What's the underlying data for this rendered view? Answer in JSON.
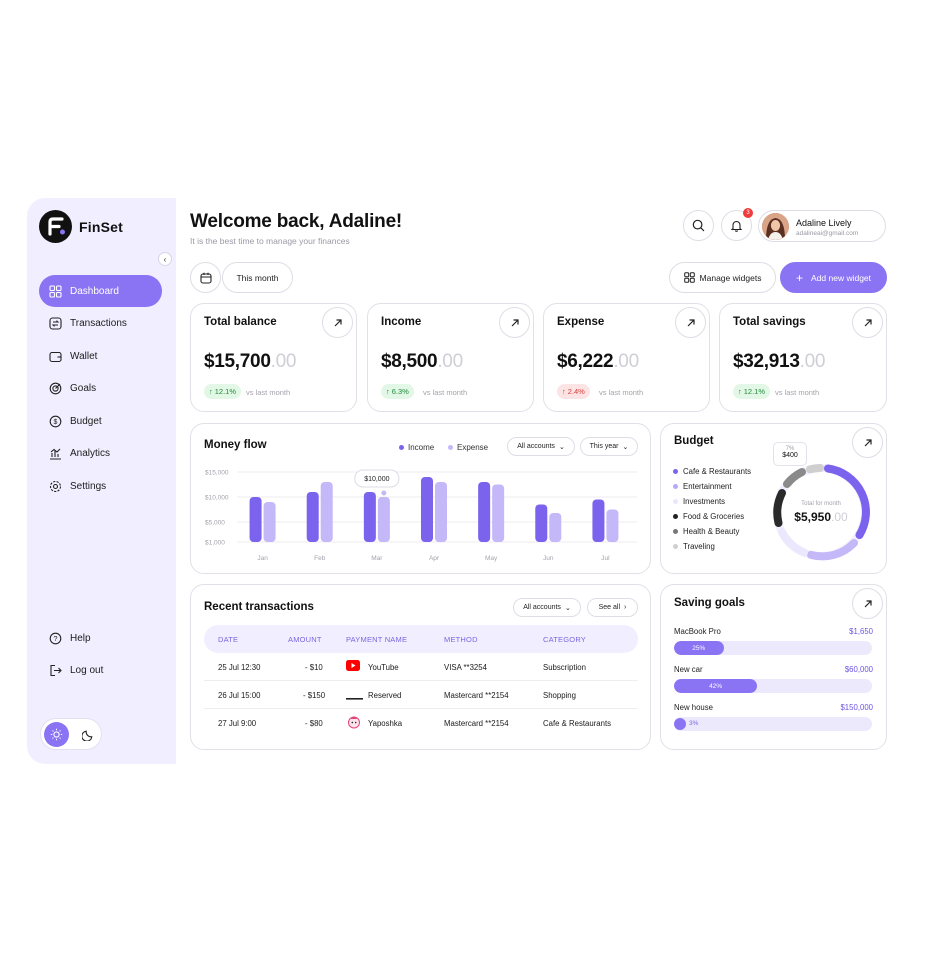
{
  "app": {
    "name": "FinSet"
  },
  "sidebar": {
    "items": [
      {
        "label": "Dashboard",
        "icon": "dashboard-icon",
        "active": true
      },
      {
        "label": "Transactions",
        "icon": "transactions-icon"
      },
      {
        "label": "Wallet",
        "icon": "wallet-icon"
      },
      {
        "label": "Goals",
        "icon": "goals-icon"
      },
      {
        "label": "Budget",
        "icon": "budget-icon"
      },
      {
        "label": "Analytics",
        "icon": "analytics-icon"
      },
      {
        "label": "Settings",
        "icon": "settings-icon"
      }
    ],
    "bottom": [
      {
        "label": "Help",
        "icon": "help-icon"
      },
      {
        "label": "Log out",
        "icon": "logout-icon"
      }
    ],
    "theme": {
      "active": "light"
    }
  },
  "header": {
    "title": "Welcome back, Adaline!",
    "subtitle": "It is the best time to manage your finances",
    "notifications_count": "3",
    "user": {
      "name": "Adaline Lively",
      "email": "adalineai@gmail.com"
    }
  },
  "toolbar": {
    "period": "This month",
    "manage_widgets": "Manage widgets",
    "add_widget": "Add new widget"
  },
  "stats": [
    {
      "title": "Total balance",
      "amount": "$15,700",
      "cents": ".00",
      "delta": "12.1%",
      "direction": "up",
      "note": "vs last month"
    },
    {
      "title": "Income",
      "amount": "$8,500",
      "cents": ".00",
      "delta": "6.3%",
      "direction": "up",
      "note": "vs last month"
    },
    {
      "title": "Expense",
      "amount": "$6,222",
      "cents": ".00",
      "delta": "2.4%",
      "direction": "down",
      "note": "vs last month"
    },
    {
      "title": "Total savings",
      "amount": "$32,913",
      "cents": ".00",
      "delta": "12.1%",
      "direction": "up",
      "note": "vs last month"
    }
  ],
  "money_flow": {
    "title": "Money flow",
    "legend_income": "Income",
    "legend_expense": "Expense",
    "accounts_filter": "All accounts",
    "period_filter": "This year",
    "tooltip": "$10,000",
    "colors": {
      "income": "#7b63ee",
      "expense": "#c4b8f8"
    }
  },
  "chart_data": {
    "type": "bar",
    "title": "Money flow",
    "categories": [
      "Jan",
      "Feb",
      "Mar",
      "Apr",
      "May",
      "Jun",
      "Jul"
    ],
    "y_ticks": [
      "$15,000",
      "$10,000",
      "$5,000",
      "$1,000"
    ],
    "ylim": [
      1000,
      15000
    ],
    "series": [
      {
        "name": "Income",
        "values": [
          10000,
          11000,
          11000,
          14000,
          13000,
          8500,
          9500
        ]
      },
      {
        "name": "Expense",
        "values": [
          9000,
          13000,
          10000,
          13000,
          12500,
          6800,
          7500
        ]
      }
    ],
    "annotation": {
      "category": "Mar",
      "label": "$10,000"
    },
    "legend": "top-right",
    "grid": true
  },
  "budget": {
    "title": "Budget",
    "items": [
      {
        "label": "Cafe & Restaurants",
        "color": "#7b63ee"
      },
      {
        "label": "Entertainment",
        "color": "#b7a9f7"
      },
      {
        "label": "Investments",
        "color": "#e9e5fd"
      },
      {
        "label": "Food & Groceries",
        "color": "#222222"
      },
      {
        "label": "Health & Beauty",
        "color": "#777777"
      },
      {
        "label": "Traveling",
        "color": "#cfcfcf"
      }
    ],
    "center_label": "Total for month",
    "center_amount": "$5,950",
    "center_cents": ".00",
    "callout_percent": "7%",
    "callout_value": "$400"
  },
  "transactions": {
    "title": "Recent transactions",
    "accounts_filter": "All accounts",
    "see_all": "See all",
    "columns": [
      "DATE",
      "AMOUNT",
      "PAYMENT NAME",
      "METHOD",
      "CATEGORY"
    ],
    "rows": [
      {
        "date": "25 Jul 12:30",
        "amount": "- $10",
        "name": "YouTube",
        "method": "VISA **3254",
        "category": "Subscription",
        "icon": "youtube-icon"
      },
      {
        "date": "26 Jul 15:00",
        "amount": "- $150",
        "name": "Reserved",
        "method": "Mastercard **2154",
        "category": "Shopping",
        "icon": "reserved-icon"
      },
      {
        "date": "27 Jul 9:00",
        "amount": "- $80",
        "name": "Yaposhka",
        "method": "Mastercard **2154",
        "category": "Cafe & Restaurants",
        "icon": "yaposhka-icon"
      }
    ]
  },
  "saving_goals": {
    "title": "Saving goals",
    "goals": [
      {
        "name": "MacBook Pro",
        "target": "$1,650",
        "progress": "25%",
        "fraction": 0.25
      },
      {
        "name": "New car",
        "target": "$60,000",
        "progress": "42%",
        "fraction": 0.42
      },
      {
        "name": "New house",
        "target": "$150,000",
        "progress": "3%",
        "fraction": 0.03
      }
    ]
  }
}
